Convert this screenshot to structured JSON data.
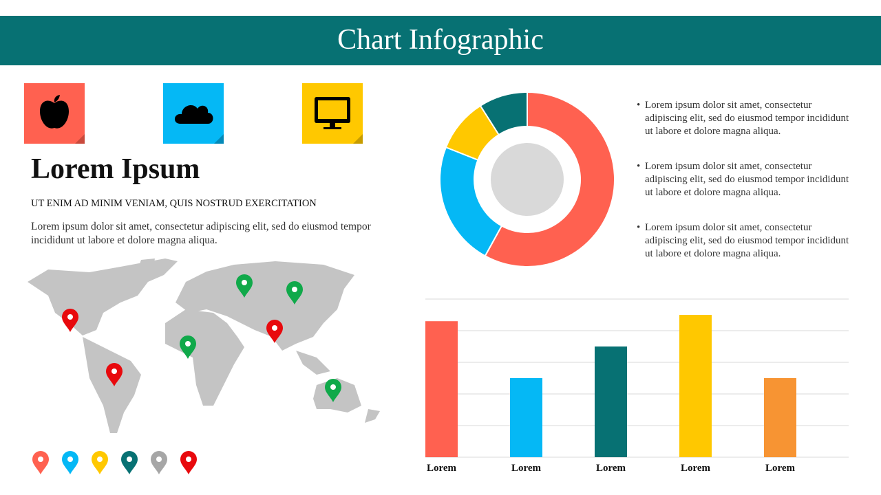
{
  "header": {
    "title": "Chart Infographic"
  },
  "intro": {
    "heading": "Lorem Ipsum",
    "subheading": "UT ENIM AD MINIM VENIAM, QUIS NOSTRUD EXERCITATION",
    "body": "Lorem ipsum dolor sit amet, consectetur adipiscing elit, sed do eiusmod tempor incididunt ut labore et dolore magna aliqua."
  },
  "bullets": [
    "Lorem ipsum dolor sit amet, consectetur adipiscing elit, sed do eiusmod tempor incididunt ut labore et dolore magna aliqua.",
    "Lorem ipsum dolor sit amet, consectetur adipiscing elit, sed do eiusmod tempor incididunt ut labore et dolore magna aliqua.",
    "Lorem ipsum dolor sit amet, consectetur adipiscing elit, sed do eiusmod tempor incididunt ut labore et dolore magna aliqua."
  ],
  "chart_data": [
    {
      "type": "donut",
      "values": [
        58,
        23,
        10,
        9
      ],
      "colors": [
        "#ff6150",
        "#05b8f5",
        "#ffc800",
        "#077173"
      ]
    },
    {
      "type": "bar",
      "categories": [
        "Lorem",
        "Lorem",
        "Lorem",
        "Lorem",
        "Lorem"
      ],
      "values": [
        4.3,
        2.5,
        3.5,
        4.5,
        2.5
      ],
      "colors": [
        "#ff6150",
        "#05b8f5",
        "#077173",
        "#ffc800",
        "#f79433"
      ],
      "ylim": [
        0,
        5
      ],
      "yticks": [
        0,
        1,
        2,
        3,
        4,
        5
      ],
      "grid": true
    }
  ]
}
